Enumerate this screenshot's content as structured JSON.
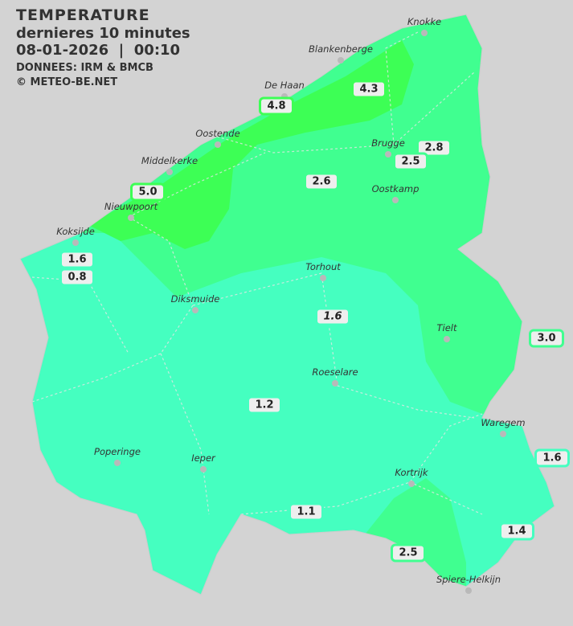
{
  "header": {
    "title": "TEMPERATURE",
    "subtitle": "dernieres 10 minutes",
    "datetime": "08-01-2026  |  00:10",
    "source": "DONNEES: IRM & BMCB",
    "copyright": "© METEO-BE.NET"
  },
  "colors": {
    "background": "#d3d3d3",
    "cool": "#45ffc0",
    "mild": "#40ff90",
    "warm": "#3dff55"
  },
  "cities": [
    {
      "name": "Knokke"
    },
    {
      "name": "Blankenberge"
    },
    {
      "name": "De Haan"
    },
    {
      "name": "Oostende"
    },
    {
      "name": "Brugge"
    },
    {
      "name": "Middelkerke"
    },
    {
      "name": "Oostkamp"
    },
    {
      "name": "Nieuwpoort"
    },
    {
      "name": "Koksijde"
    },
    {
      "name": "Torhout"
    },
    {
      "name": "Diksmuide"
    },
    {
      "name": "Tielt"
    },
    {
      "name": "Roeselare"
    },
    {
      "name": "Waregem"
    },
    {
      "name": "Poperinge"
    },
    {
      "name": "Ieper"
    },
    {
      "name": "Kortrijk"
    },
    {
      "name": "Spiere-Helkijn"
    }
  ],
  "readings": [
    {
      "value": "4.3",
      "color": "#3dff55"
    },
    {
      "value": "4.8",
      "color": "#3dff55"
    },
    {
      "value": "2.8",
      "color": "#40ff90"
    },
    {
      "value": "2.5",
      "color": "#40ff90"
    },
    {
      "value": "2.6",
      "color": "#40ff90"
    },
    {
      "value": "5.0",
      "color": "#3dff55"
    },
    {
      "value": "1.6",
      "color": "#45ffc0"
    },
    {
      "value": "0.8",
      "color": "#45ffc0"
    },
    {
      "value": "1.6",
      "color": "#45ffc0"
    },
    {
      "value": "3.0",
      "color": "#40ff90"
    },
    {
      "value": "1.2",
      "color": "#45ffc0"
    },
    {
      "value": "1.6",
      "color": "#45ffc0"
    },
    {
      "value": "1.1",
      "color": "#45ffc0"
    },
    {
      "value": "1.4",
      "color": "#45ffc0"
    },
    {
      "value": "2.5",
      "color": "#40ff90"
    }
  ]
}
